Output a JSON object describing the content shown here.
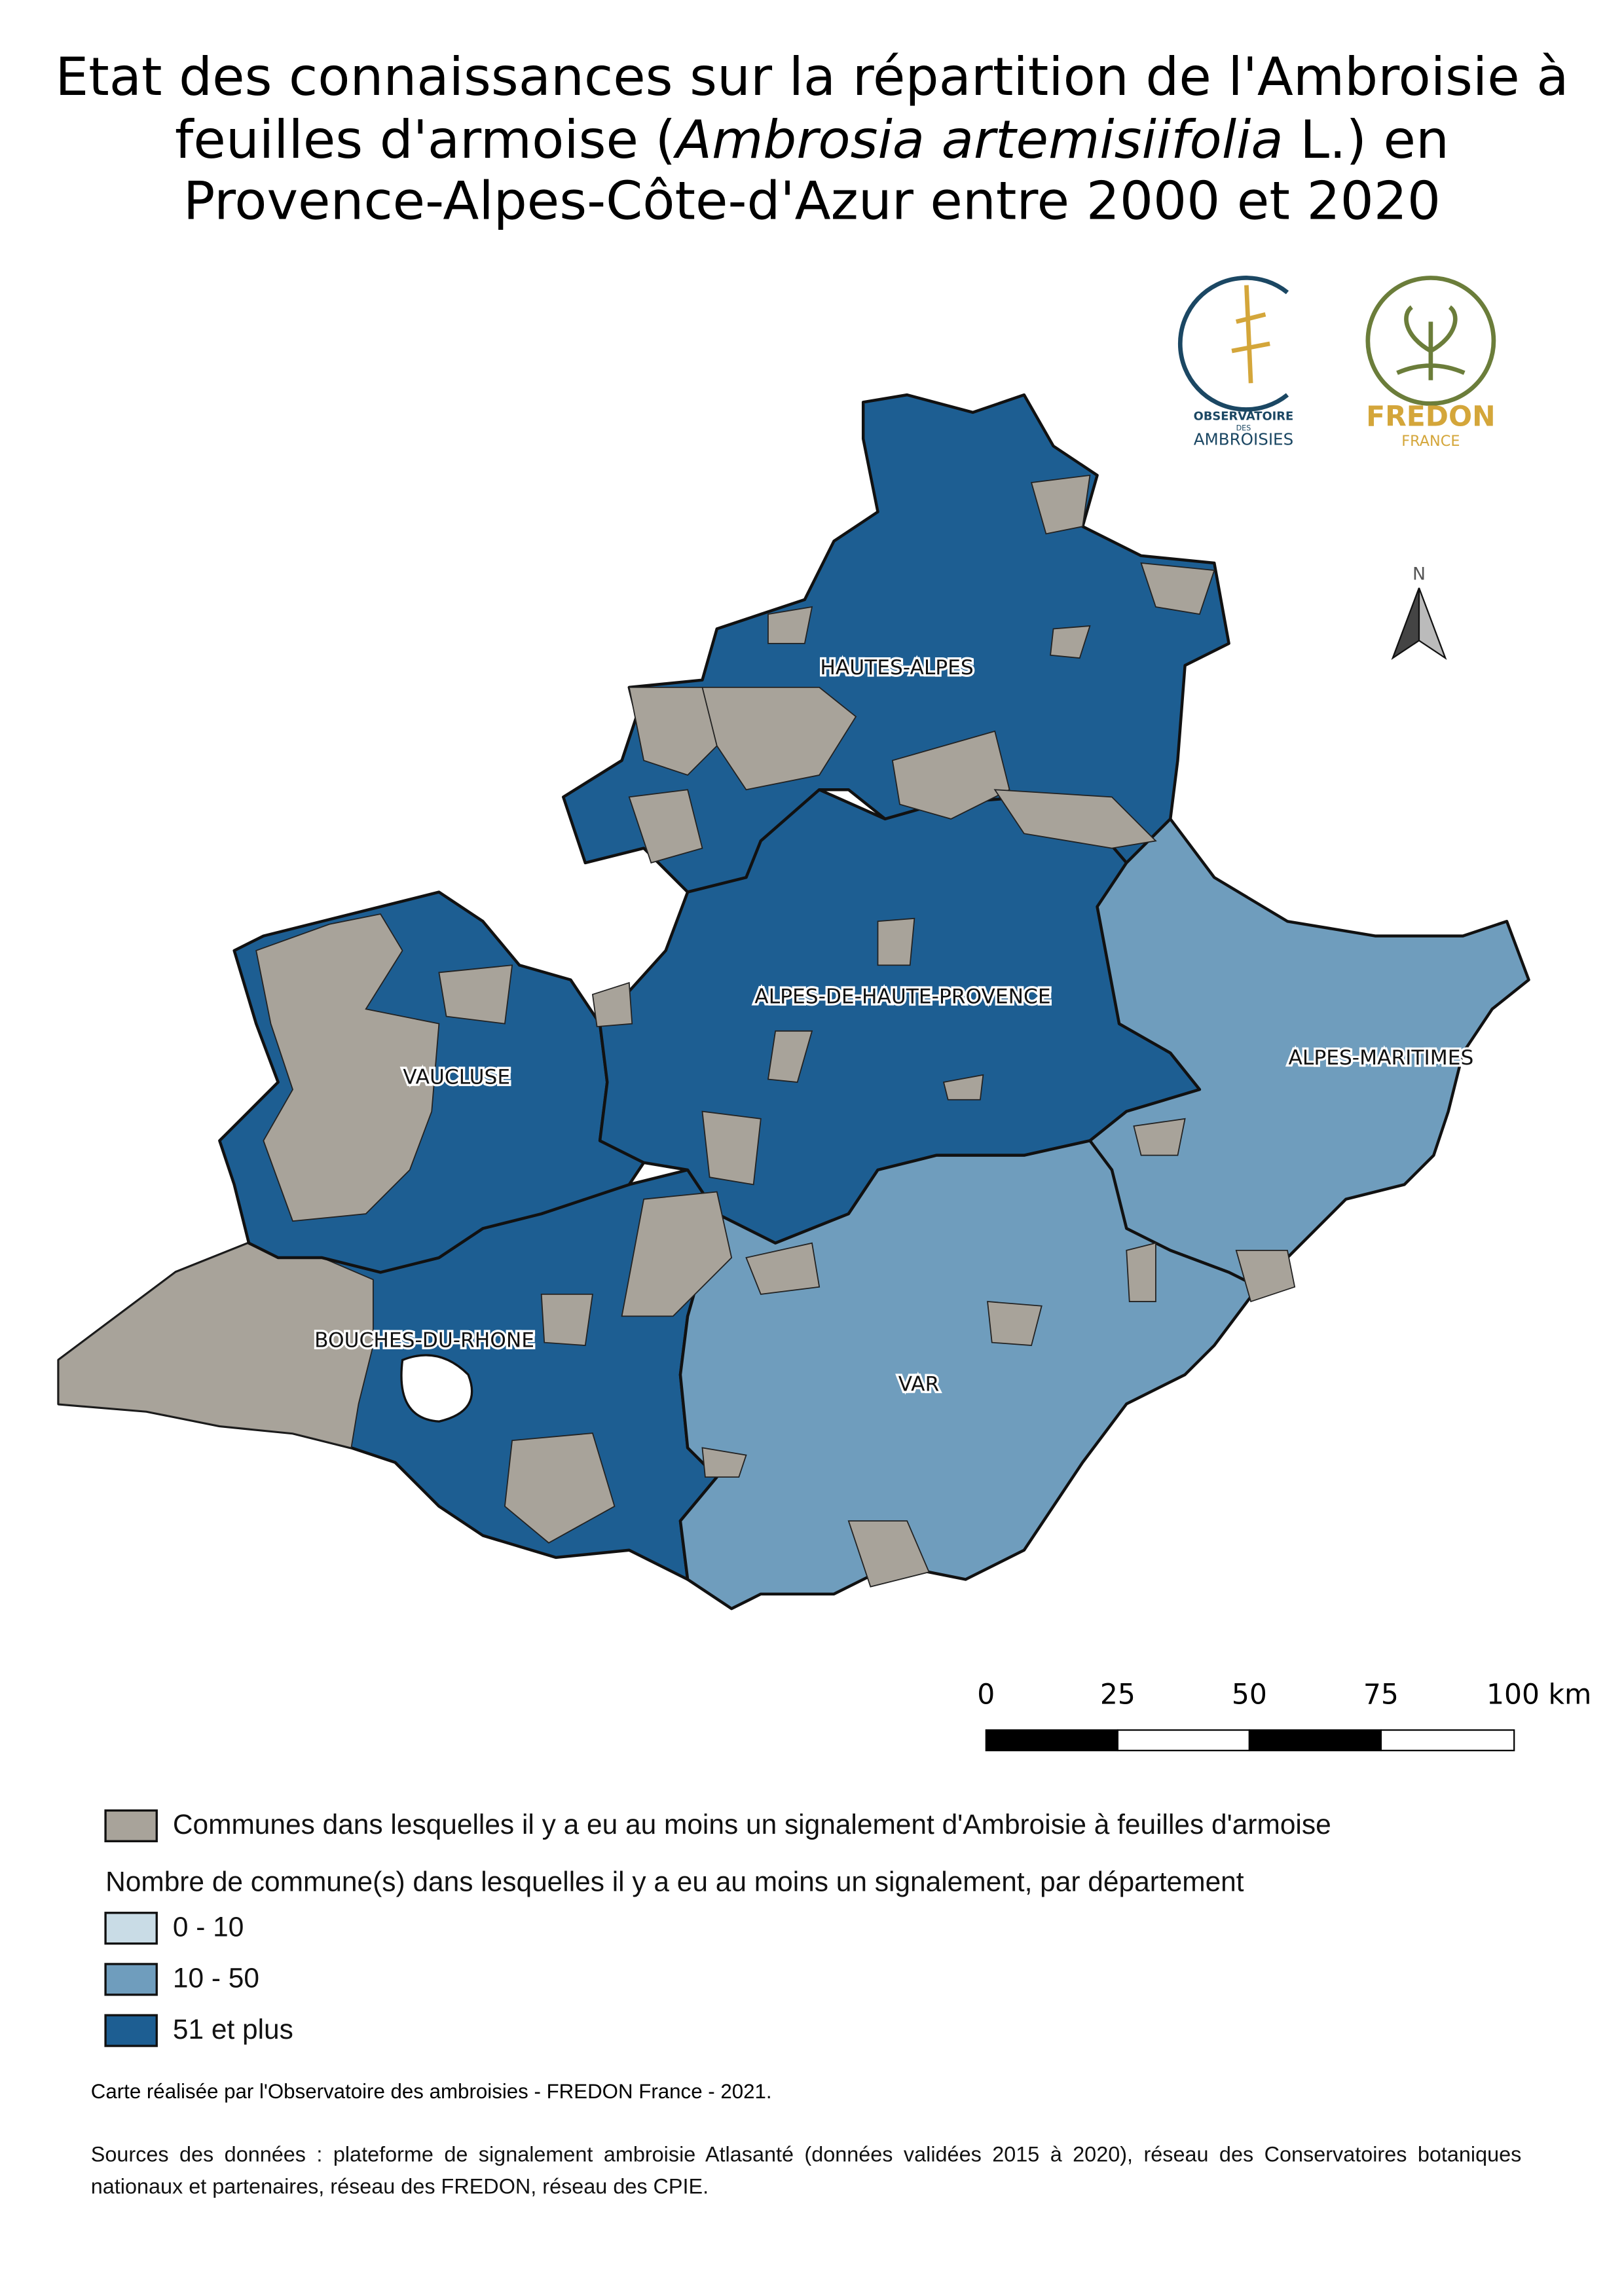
{
  "title": {
    "line1": "Etat des connaissances sur la répartition de l'Ambroisie à",
    "line2_before": "feuilles d'armoise (",
    "line2_italic": "Ambrosia artemisiifolia",
    "line2_after": " L.) en",
    "line3": "Provence-Alpes-Côte-d'Azur entre 2000 et 2020"
  },
  "logos": {
    "observatoire": [
      "OBSERVATOIRE",
      "DES",
      "AMBROISIES"
    ],
    "fredon": [
      "FREDON",
      "FRANCE"
    ]
  },
  "north_arrow": "N",
  "departments": [
    "HAUTES-ALPES",
    "ALPES-DE-HAUTE-PROVENCE",
    "VAUCLUSE",
    "ALPES-MARITIMES",
    "BOUCHES-DU-RHONE",
    "VAR"
  ],
  "scale_bar": {
    "labels": [
      "0",
      "25",
      "50",
      "75",
      "100 km"
    ]
  },
  "legend": {
    "communes": {
      "label": "Communes dans lesquelles il y a eu au moins un signalement d'Ambroisie à feuilles d'armoise",
      "color": "#a8a39a"
    },
    "heading": "Nombre de commune(s) dans lesquelles il y a eu au moins un signalement, par département",
    "classes": [
      {
        "label": "0 - 10",
        "color": "#c9dce6"
      },
      {
        "label": "10 - 50",
        "color": "#6f9dbd"
      },
      {
        "label": "51 et plus",
        "color": "#1d5e92"
      }
    ]
  },
  "credit": "Carte réalisée par l'Observatoire des ambroisies - FREDON France - 2021.",
  "sources": "Sources des données : plateforme de signalement ambroisie Atlasanté (données validées 2015 à 2020), réseau des Conservatoires botaniques nationaux et partenaires, réseau des FREDON, réseau des CPIE."
}
